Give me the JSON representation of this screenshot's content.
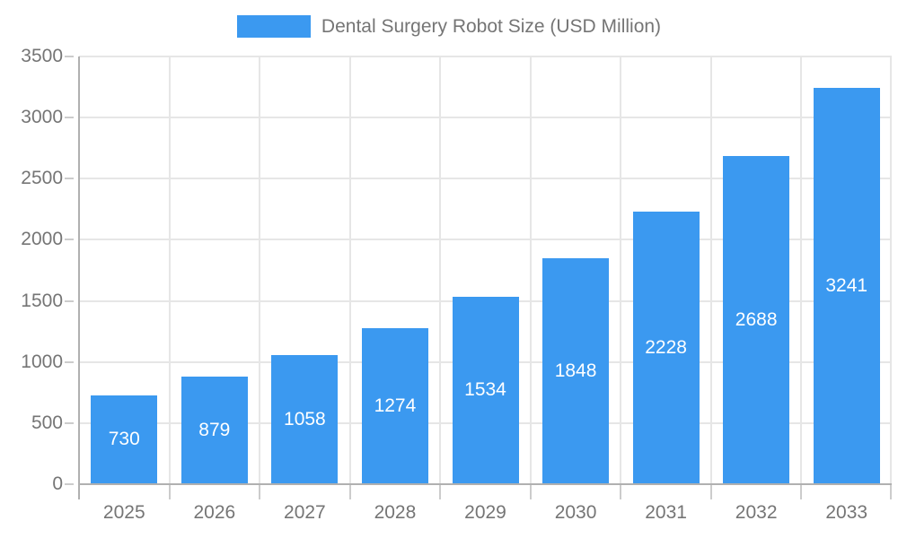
{
  "chart_data": {
    "type": "bar",
    "title": "Dental Surgery Robot Size (USD Million)",
    "legend": {
      "position": "top",
      "label": "Dental Surgery Robot Size (USD Million)"
    },
    "categories": [
      "2025",
      "2026",
      "2027",
      "2028",
      "2029",
      "2030",
      "2031",
      "2032",
      "2033"
    ],
    "values": [
      730,
      879,
      1058,
      1274,
      1534,
      1848,
      2228,
      2688,
      3241
    ],
    "xlabel": "",
    "ylabel": "",
    "ylim": [
      0,
      3500
    ],
    "yticks": [
      0,
      500,
      1000,
      1500,
      2000,
      2500,
      3000,
      3500
    ],
    "grid": true,
    "bar_value_labels_visible": true,
    "colors": {
      "bar": "#3B99F0",
      "grid_line": "#E6E6E6",
      "axis_line": "#B0B0B0",
      "tick": "#CCCCCC",
      "axis_text": "#757575",
      "bar_label_text": "#FFFFFF",
      "background": "#FFFFFF"
    }
  }
}
